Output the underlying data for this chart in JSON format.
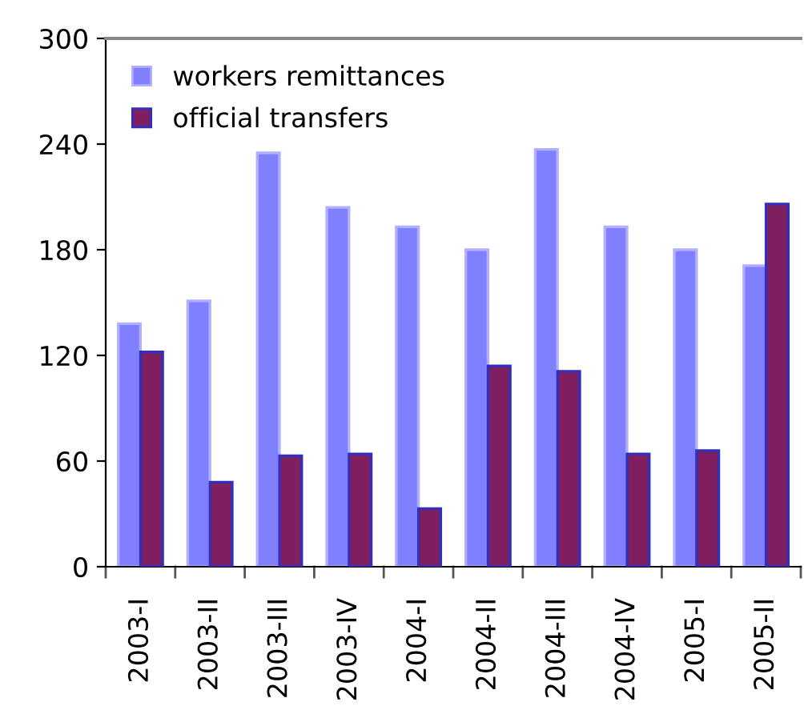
{
  "chart_data": {
    "type": "bar",
    "categories": [
      "2003-I",
      "2003-II",
      "2003-III",
      "2003-IV",
      "2004-I",
      "2004-II",
      "2004-III",
      "2004-IV",
      "2005-I",
      "2005-II"
    ],
    "series": [
      {
        "name": "workers remittances",
        "color": "#8080ff",
        "values": [
          138,
          151,
          235,
          204,
          193,
          180,
          237,
          193,
          180,
          171
        ]
      },
      {
        "name": "official transfers",
        "color": "#7f1f5f",
        "values": [
          122,
          48,
          63,
          64,
          33,
          114,
          111,
          64,
          66,
          206
        ]
      }
    ],
    "ylim": [
      0,
      300
    ],
    "yticks": [
      0,
      60,
      120,
      180,
      240,
      300
    ],
    "grid": false,
    "legend": "top left"
  }
}
